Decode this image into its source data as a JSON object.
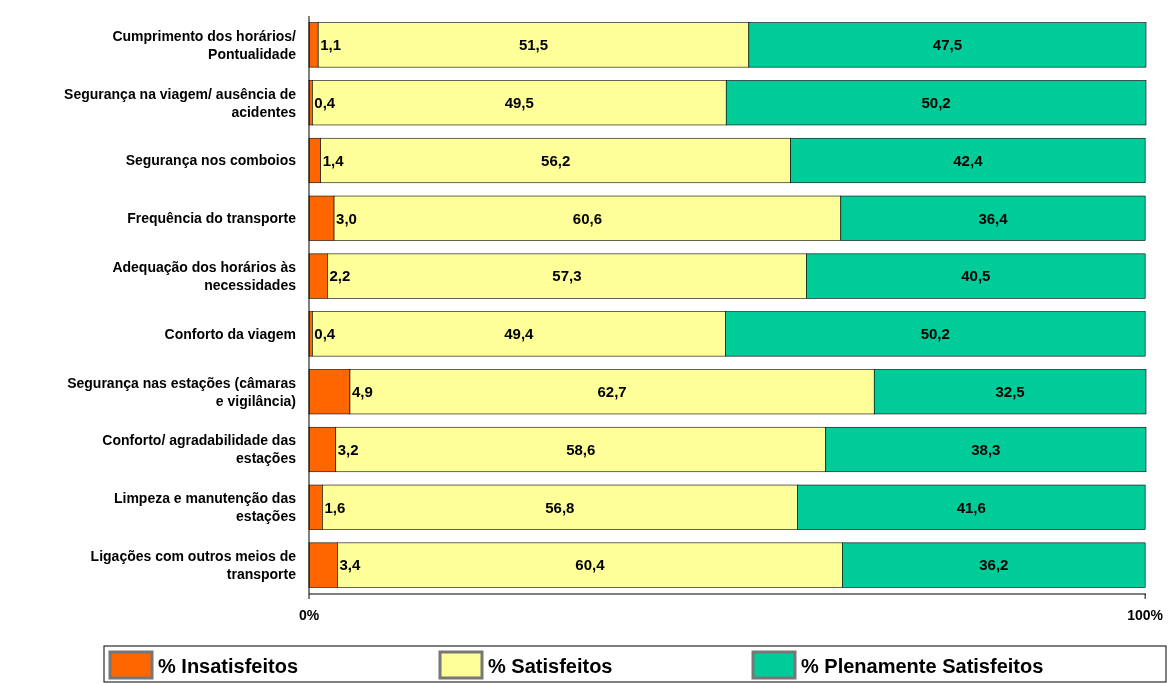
{
  "chart_data": {
    "type": "bar",
    "orientation": "horizontal",
    "stacked": true,
    "categories": [
      "Cumprimento dos horários/ Pontualidade",
      "Segurança na viagem/ ausência de acidentes",
      "Segurança nos comboios",
      "Frequência do transporte",
      "Adequação dos horários às necessidades",
      "Conforto da viagem",
      "Segurança nas estações (câmaras e vigilância)",
      "Conforto/ agradabilidade das estações",
      "Limpeza e manutenção das estações",
      "Ligações com outros meios de transporte"
    ],
    "series": [
      {
        "name": "% Insatisfeitos",
        "color": "#ff6600",
        "values": [
          1.1,
          0.4,
          1.4,
          3.0,
          2.2,
          0.4,
          4.9,
          3.2,
          1.6,
          3.4
        ],
        "value_labels": [
          "1,1",
          "0,4",
          "1,4",
          "3,0",
          "2,2",
          "0,4",
          "4,9",
          "3,2",
          "1,6",
          "3,4"
        ]
      },
      {
        "name": "% Satisfeitos",
        "color": "#ffff99",
        "values": [
          51.5,
          49.5,
          56.2,
          60.6,
          57.3,
          49.4,
          62.7,
          58.6,
          56.8,
          60.4
        ],
        "value_labels": [
          "51,5",
          "49,5",
          "56,2",
          "60,6",
          "57,3",
          "49,4",
          "62,7",
          "58,6",
          "56,8",
          "60,4"
        ]
      },
      {
        "name": "% Plenamente Satisfeitos",
        "color": "#00cc99",
        "values": [
          47.5,
          50.2,
          42.4,
          36.4,
          40.5,
          50.2,
          32.5,
          38.3,
          41.6,
          36.2
        ],
        "value_labels": [
          "47,5",
          "50,2",
          "42,4",
          "36,4",
          "40,5",
          "50,2",
          "32,5",
          "38,3",
          "41,6",
          "36,2"
        ]
      }
    ],
    "xlim": [
      0,
      100.1
    ],
    "xticks": [
      {
        "value": 0,
        "label": "0%"
      },
      {
        "value": 100,
        "label": "100%"
      }
    ],
    "legend": "bottom",
    "grid": false
  }
}
